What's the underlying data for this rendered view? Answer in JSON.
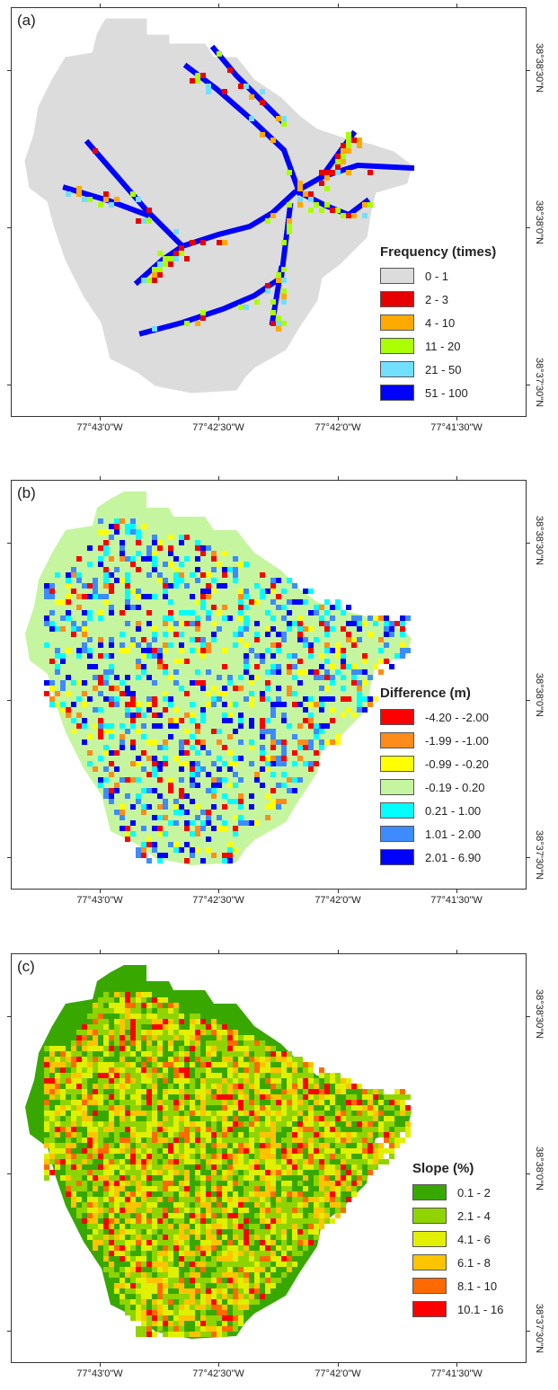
{
  "panels": [
    {
      "id": "a",
      "letter": "(a)",
      "legend": {
        "title": "Frequency (times)",
        "items": [
          {
            "label": "0 - 1",
            "color": "#dcdcdc"
          },
          {
            "label": "2 - 3",
            "color": "#e60000"
          },
          {
            "label": "4 - 10",
            "color": "#ffaa00"
          },
          {
            "label": "11 - 20",
            "color": "#aaff00"
          },
          {
            "label": "21 - 50",
            "color": "#73dfff"
          },
          {
            "label": "51 - 100",
            "color": "#0000ff"
          }
        ]
      }
    },
    {
      "id": "b",
      "letter": "(b)",
      "legend": {
        "title": "Difference (m)",
        "items": [
          {
            "label": "-4.20 - -2.00",
            "color": "#ff0000"
          },
          {
            "label": "-1.99 - -1.00",
            "color": "#ff8c1a"
          },
          {
            "label": "-0.99 - -0.20",
            "color": "#ffff00"
          },
          {
            "label": "-0.19 - 0.20",
            "color": "#c6f5a0"
          },
          {
            "label": "0.21 - 1.00",
            "color": "#00ffff"
          },
          {
            "label": "1.01 - 2.00",
            "color": "#3d8bff"
          },
          {
            "label": "2.01 - 6.90",
            "color": "#0000ff"
          }
        ]
      }
    },
    {
      "id": "c",
      "letter": "(c)",
      "legend": {
        "title": "Slope (%)",
        "items": [
          {
            "label": "0.1 - 2",
            "color": "#38a800"
          },
          {
            "label": "2.1 - 4",
            "color": "#8fd400"
          },
          {
            "label": "4.1 - 6",
            "color": "#e0f000"
          },
          {
            "label": "6.1 - 8",
            "color": "#ffc400"
          },
          {
            "label": "8.1 - 10",
            "color": "#ff6a00"
          },
          {
            "label": "10.1 - 16",
            "color": "#ff0000"
          }
        ]
      }
    }
  ],
  "x_axis_labels": [
    "77°43'0\"W",
    "77°42'30\"W",
    "77°42'0\"W",
    "77°41'30\"W"
  ],
  "y_axis_labels": [
    "38°38'30\"N",
    "38°38'0\"N",
    "38°37'30\"N"
  ]
}
